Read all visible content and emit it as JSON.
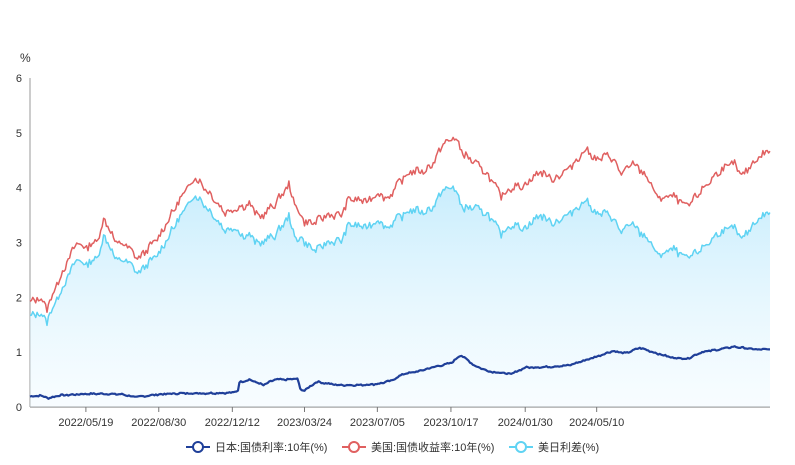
{
  "chart_data": {
    "type": "line",
    "y_unit": "%",
    "ylim": [
      0,
      6
    ],
    "y_ticks": [
      "0",
      "1",
      "2",
      "3",
      "4",
      "5",
      "6"
    ],
    "x_ticks": [
      "2022/05/19",
      "2022/08/30",
      "2022/12/12",
      "2023/03/24",
      "2023/07/05",
      "2023/10/17",
      "2024/01/30",
      "2024/05/10"
    ],
    "grid": false,
    "legend_position": "bottom",
    "series": [
      {
        "name": "日本:国债利率:10年(%)",
        "color": "#1f3f99",
        "fill": false,
        "anchors": [
          [
            "2022/03/01",
            0.19
          ],
          [
            "2022/03/15",
            0.21
          ],
          [
            "2022/03/28",
            0.16
          ],
          [
            "2022/04/10",
            0.21
          ],
          [
            "2022/04/25",
            0.22
          ],
          [
            "2022/05/19",
            0.24
          ],
          [
            "2022/06/15",
            0.24
          ],
          [
            "2022/07/10",
            0.23
          ],
          [
            "2022/07/28",
            0.18
          ],
          [
            "2022/08/30",
            0.23
          ],
          [
            "2022/10/01",
            0.25
          ],
          [
            "2022/11/01",
            0.25
          ],
          [
            "2022/12/12",
            0.26
          ],
          [
            "2022/12/20",
            0.3
          ],
          [
            "2022/12/22",
            0.45
          ],
          [
            "2023/01/05",
            0.5
          ],
          [
            "2023/01/25",
            0.4
          ],
          [
            "2023/02/10",
            0.5
          ],
          [
            "2023/03/01",
            0.5
          ],
          [
            "2023/03/15",
            0.52
          ],
          [
            "2023/03/17",
            0.33
          ],
          [
            "2023/03/24",
            0.3
          ],
          [
            "2023/04/10",
            0.46
          ],
          [
            "2023/05/10",
            0.4
          ],
          [
            "2023/06/10",
            0.4
          ],
          [
            "2023/07/05",
            0.42
          ],
          [
            "2023/07/25",
            0.48
          ],
          [
            "2023/08/10",
            0.6
          ],
          [
            "2023/09/01",
            0.65
          ],
          [
            "2023/09/20",
            0.72
          ],
          [
            "2023/10/17",
            0.8
          ],
          [
            "2023/10/31",
            0.95
          ],
          [
            "2023/11/20",
            0.75
          ],
          [
            "2023/12/10",
            0.65
          ],
          [
            "2024/01/10",
            0.6
          ],
          [
            "2024/01/30",
            0.72
          ],
          [
            "2024/03/01",
            0.73
          ],
          [
            "2024/04/01",
            0.76
          ],
          [
            "2024/05/10",
            0.92
          ],
          [
            "2024/06/01",
            1.02
          ],
          [
            "2024/06/20",
            0.98
          ],
          [
            "2024/07/10",
            1.08
          ],
          [
            "2024/08/05",
            0.97
          ],
          [
            "2024/08/25",
            0.9
          ],
          [
            "2024/09/15",
            0.88
          ],
          [
            "2024/10/05",
            1.0
          ],
          [
            "2024/10/30",
            1.05
          ],
          [
            "2024/11/20",
            1.1
          ],
          [
            "2024/12/20",
            1.05
          ],
          [
            "2025/01/10",
            1.05
          ]
        ]
      },
      {
        "name": "美国:国债收益率:10年(%)",
        "color": "#e06060",
        "fill": false,
        "anchors": [
          [
            "2022/03/01",
            1.9
          ],
          [
            "2022/03/15",
            2.0
          ],
          [
            "2022/03/25",
            1.8
          ],
          [
            "2022/04/10",
            2.3
          ],
          [
            "2022/04/25",
            2.7
          ],
          [
            "2022/05/06",
            3.0
          ],
          [
            "2022/05/19",
            2.9
          ],
          [
            "2022/06/05",
            3.05
          ],
          [
            "2022/06/14",
            3.45
          ],
          [
            "2022/06/30",
            3.0
          ],
          [
            "2022/07/15",
            2.95
          ],
          [
            "2022/08/01",
            2.7
          ],
          [
            "2022/08/30",
            3.1
          ],
          [
            "2022/09/25",
            3.7
          ],
          [
            "2022/10/20",
            4.2
          ],
          [
            "2022/11/10",
            3.9
          ],
          [
            "2022/12/01",
            3.55
          ],
          [
            "2022/12/12",
            3.6
          ],
          [
            "2023/01/05",
            3.7
          ],
          [
            "2023/01/20",
            3.45
          ],
          [
            "2023/02/10",
            3.7
          ],
          [
            "2023/03/02",
            4.05
          ],
          [
            "2023/03/10",
            3.7
          ],
          [
            "2023/03/24",
            3.38
          ],
          [
            "2023/04/05",
            3.35
          ],
          [
            "2023/04/25",
            3.5
          ],
          [
            "2023/05/15",
            3.5
          ],
          [
            "2023/05/26",
            3.8
          ],
          [
            "2023/06/20",
            3.75
          ],
          [
            "2023/07/05",
            3.9
          ],
          [
            "2023/07/20",
            3.8
          ],
          [
            "2023/08/05",
            4.1
          ],
          [
            "2023/08/22",
            4.3
          ],
          [
            "2023/09/10",
            4.3
          ],
          [
            "2023/09/25",
            4.5
          ],
          [
            "2023/10/05",
            4.8
          ],
          [
            "2023/10/17",
            4.85
          ],
          [
            "2023/10/20",
            4.95
          ],
          [
            "2023/11/05",
            4.6
          ],
          [
            "2023/11/25",
            4.4
          ],
          [
            "2023/12/10",
            4.2
          ],
          [
            "2023/12/27",
            3.85
          ],
          [
            "2024/01/10",
            4.0
          ],
          [
            "2024/01/30",
            4.05
          ],
          [
            "2024/02/20",
            4.3
          ],
          [
            "2024/03/10",
            4.15
          ],
          [
            "2024/04/01",
            4.35
          ],
          [
            "2024/04/25",
            4.7
          ],
          [
            "2024/05/10",
            4.5
          ],
          [
            "2024/05/28",
            4.6
          ],
          [
            "2024/06/15",
            4.25
          ],
          [
            "2024/07/01",
            4.45
          ],
          [
            "2024/07/20",
            4.2
          ],
          [
            "2024/08/05",
            3.8
          ],
          [
            "2024/08/25",
            3.85
          ],
          [
            "2024/09/15",
            3.65
          ],
          [
            "2024/10/05",
            3.95
          ],
          [
            "2024/10/30",
            4.3
          ],
          [
            "2024/11/20",
            4.45
          ],
          [
            "2024/12/01",
            4.2
          ],
          [
            "2024/12/20",
            4.5
          ],
          [
            "2025/01/10",
            4.7
          ]
        ]
      },
      {
        "name": "美日利差(%)",
        "color": "#5fd3f3",
        "fill": true,
        "anchors": []
      }
    ]
  }
}
